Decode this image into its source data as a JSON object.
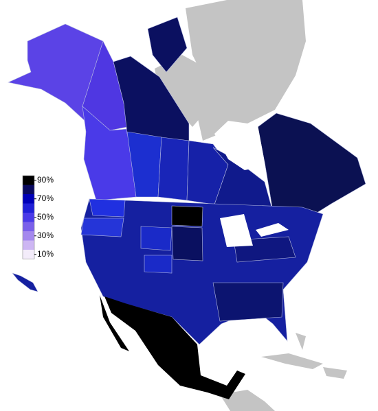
{
  "legend": {
    "swatches": [
      "#000000",
      "#0a0a60",
      "#0000b8",
      "#2020d8",
      "#4a3ae8",
      "#7a60ea",
      "#a488ee",
      "#cdb6f3",
      "#f3ecfa"
    ],
    "labels": [
      "90%",
      "70%",
      "50%",
      "30%",
      "10%"
    ]
  }
}
